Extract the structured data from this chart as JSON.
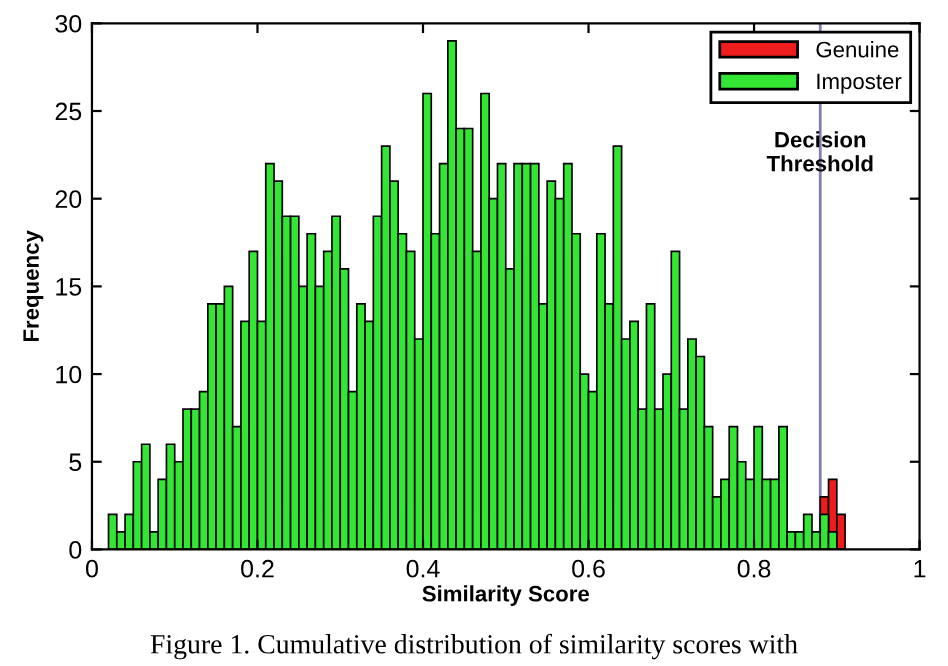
{
  "chart_data": {
    "type": "histogram",
    "xlabel": "Similarity Score",
    "ylabel": "Frequency",
    "bins": [
      0.02,
      0.03,
      0.04,
      0.05,
      0.06,
      0.07,
      0.08,
      0.09,
      0.1,
      0.11,
      0.12,
      0.13,
      0.14,
      0.15,
      0.16,
      0.17,
      0.18,
      0.19,
      0.2,
      0.21,
      0.22,
      0.23,
      0.24,
      0.25,
      0.26,
      0.27,
      0.28,
      0.29,
      0.3,
      0.31,
      0.32,
      0.33,
      0.34,
      0.35,
      0.36,
      0.37,
      0.38,
      0.39,
      0.4,
      0.41,
      0.42,
      0.43,
      0.44,
      0.45,
      0.46,
      0.47,
      0.48,
      0.49,
      0.5,
      0.51,
      0.52,
      0.53,
      0.54,
      0.55,
      0.56,
      0.57,
      0.58,
      0.59,
      0.6,
      0.61,
      0.62,
      0.63,
      0.64,
      0.65,
      0.66,
      0.67,
      0.68,
      0.69,
      0.7,
      0.71,
      0.72,
      0.73,
      0.74,
      0.75,
      0.76,
      0.77,
      0.78,
      0.79,
      0.8,
      0.81,
      0.82,
      0.83,
      0.84,
      0.85,
      0.86,
      0.87,
      0.88,
      0.89,
      0.9,
      0.91
    ],
    "series": [
      {
        "name": "Genuine",
        "color": "#ee1c1c",
        "values": [
          null,
          null,
          null,
          null,
          null,
          null,
          null,
          null,
          null,
          null,
          null,
          null,
          null,
          null,
          null,
          null,
          null,
          null,
          null,
          null,
          null,
          null,
          null,
          null,
          null,
          null,
          null,
          null,
          null,
          null,
          null,
          null,
          null,
          null,
          null,
          null,
          null,
          null,
          null,
          null,
          null,
          null,
          null,
          null,
          null,
          null,
          null,
          null,
          null,
          null,
          null,
          null,
          null,
          null,
          null,
          null,
          null,
          null,
          null,
          null,
          null,
          null,
          null,
          null,
          null,
          null,
          null,
          null,
          null,
          null,
          null,
          null,
          null,
          null,
          null,
          null,
          null,
          null,
          null,
          null,
          null,
          null,
          null,
          null,
          null,
          null,
          3,
          4,
          2
        ]
      },
      {
        "name": "Imposter",
        "color": "#33e633",
        "values": [
          2,
          1,
          2,
          5,
          6,
          1,
          4,
          6,
          5,
          8,
          8,
          9,
          14,
          14,
          15,
          7,
          13,
          17,
          13,
          22,
          21,
          19,
          19,
          15,
          18,
          15,
          17,
          19,
          16,
          9,
          14,
          13,
          19,
          23,
          21,
          18,
          17,
          12,
          26,
          18,
          22,
          29,
          24,
          24,
          17,
          26,
          20,
          22,
          16,
          22,
          22,
          22,
          14,
          21,
          20,
          22,
          18,
          10,
          9,
          18,
          14,
          23,
          12,
          13,
          8,
          14,
          8,
          10,
          17,
          8,
          12,
          11,
          7,
          3,
          4,
          7,
          5,
          4,
          7,
          4,
          4,
          7,
          1,
          1,
          2,
          1,
          2,
          1,
          null
        ]
      }
    ],
    "xlim": [
      0,
      1
    ],
    "ylim": [
      0,
      30
    ],
    "xticks": [
      0,
      0.2,
      0.4,
      0.6,
      0.8,
      1
    ],
    "yticks": [
      0,
      5,
      10,
      15,
      20,
      25,
      30
    ],
    "ref_lines": [
      {
        "axis": "x",
        "value": 0.88,
        "label": "Decision\nThreshold",
        "color": "#8080b0"
      }
    ],
    "legend": "top right",
    "grid": false,
    "annotations": [
      "Figure 1. Cumulative distribution of similarity scores with"
    ]
  }
}
